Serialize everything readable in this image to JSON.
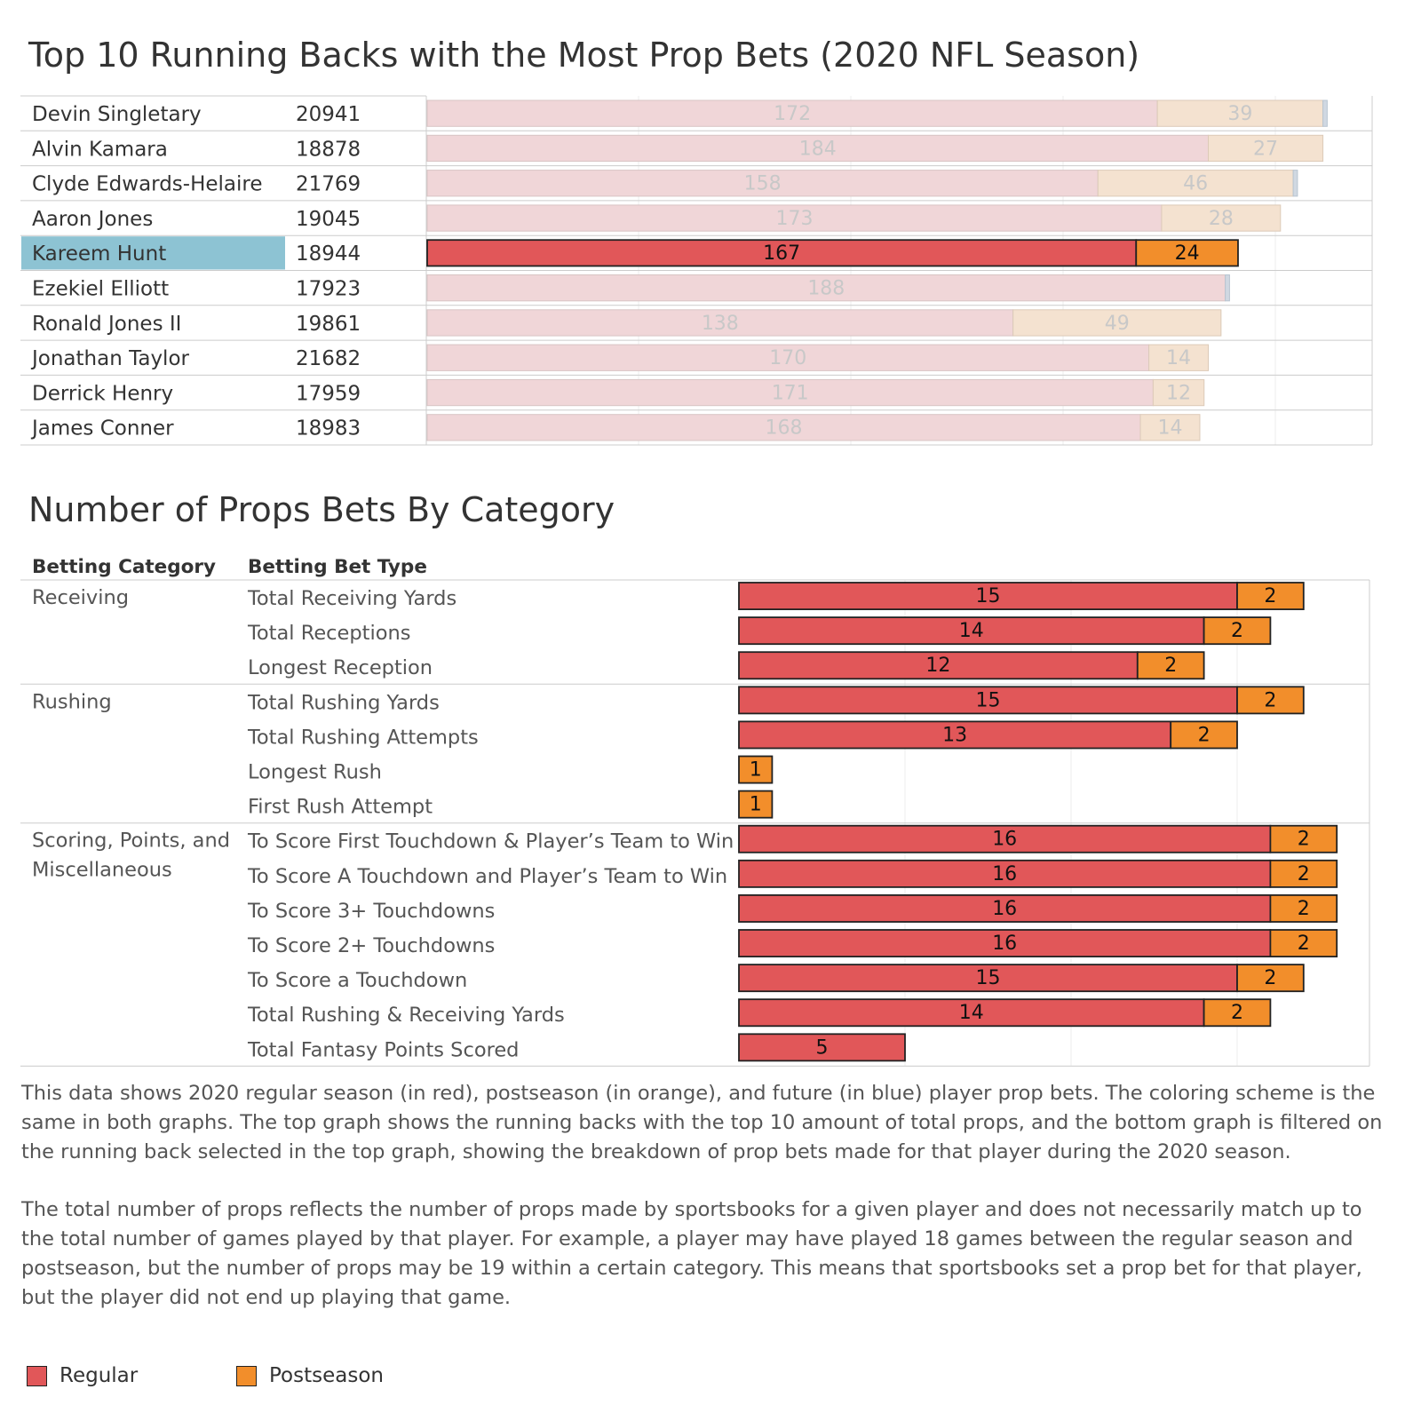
{
  "colors": {
    "regular": "#e15759",
    "postseason": "#f28e2b",
    "regular_faded": "#f0d6d8",
    "postseason_faded": "#f4e2d0",
    "highlight": "#8dc3d3",
    "faded_label": "#c8c8c8",
    "grid": "#eeeeee",
    "divider": "#cccccc"
  },
  "top_chart": {
    "title": "Top 10 Running Backs with the Most Prop Bets (2020 NFL Season)",
    "selected_player": "Kareem Hunt"
  },
  "bottom_chart": {
    "title": "Number of Props Bets By Category",
    "col_category_header": "Betting Category",
    "col_bettype_header": "Betting Bet Type"
  },
  "description": {
    "paragraph1": "This data shows 2020 regular season (in red), postseason (in orange), and future (in blue) player prop bets. The coloring scheme is the same in both graphs. The top graph shows the running backs with the top 10 amount of total props, and the bottom graph is filtered on the running back selected in the top graph, showing the breakdown of prop bets made for that player during the 2020 season.",
    "paragraph2": "The total number of props reflects the number of props made by sportsbooks for a given player and does not necessarily match up to the total number of games played by that player. For example, a player may have played 18 games between the regular season and postseason, but the number of props may be 19 within a certain category. This means that sportsbooks set a prop bet for that player, but the player did not end up playing that game."
  },
  "legend": {
    "regular_label": "Regular",
    "postseason_label": "Postseason"
  },
  "chart_data": [
    {
      "type": "bar",
      "orientation": "horizontal",
      "stacked": true,
      "title": "Top 10 Running Backs with the Most Prop Bets (2020 NFL Season)",
      "categories": [
        "Devin Singletary",
        "Alvin Kamara",
        "Clyde Edwards-Helaire",
        "Aaron Jones",
        "Kareem Hunt",
        "Ezekiel Elliott",
        "Ronald Jones II",
        "Jonathan Taylor",
        "Derrick Henry",
        "James Conner"
      ],
      "ids": [
        "20941",
        "18878",
        "21769",
        "19045",
        "18944",
        "17923",
        "19861",
        "21682",
        "17959",
        "18983"
      ],
      "series": [
        {
          "name": "Regular",
          "values": [
            172,
            184,
            158,
            173,
            167,
            188,
            138,
            170,
            171,
            168
          ]
        },
        {
          "name": "Postseason",
          "values": [
            39,
            27,
            46,
            28,
            24,
            0,
            49,
            14,
            12,
            14
          ]
        },
        {
          "values": [
            1,
            0,
            1,
            0,
            0,
            1,
            0,
            0,
            0,
            0
          ]
        }
      ],
      "highlighted": "Kareem Hunt",
      "xlim": [
        0,
        220
      ],
      "grid": true
    },
    {
      "type": "bar",
      "orientation": "horizontal",
      "stacked": true,
      "title": "Number of Props Bets By Category",
      "groups": [
        {
          "category": "Receiving",
          "bet_types": [
            "Total Receiving Yards",
            "Total Receptions",
            "Longest Reception"
          ]
        },
        {
          "category": "Rushing",
          "bet_types": [
            "Total Rushing Yards",
            "Total Rushing Attempts",
            "Longest Rush",
            "First Rush Attempt"
          ]
        },
        {
          "category": "Scoring, Points, and Miscellaneous",
          "bet_types": [
            "To Score First Touchdown & Player’s Team to Win",
            "To Score A Touchdown and Player’s Team to Win",
            "To Score 3+ Touchdowns",
            "To Score 2+ Touchdowns",
            "To Score a Touchdown",
            "Total Rushing & Receiving Yards",
            "Total Fantasy Points Scored"
          ]
        }
      ],
      "series": [
        {
          "name": "Regular",
          "values": [
            15,
            14,
            12,
            15,
            13,
            0,
            0,
            16,
            16,
            16,
            16,
            15,
            14,
            5
          ]
        },
        {
          "name": "Postseason",
          "values": [
            2,
            2,
            2,
            2,
            2,
            1,
            1,
            2,
            2,
            2,
            2,
            2,
            2,
            0
          ]
        }
      ],
      "xlim": [
        0,
        18
      ],
      "grid": true
    }
  ]
}
